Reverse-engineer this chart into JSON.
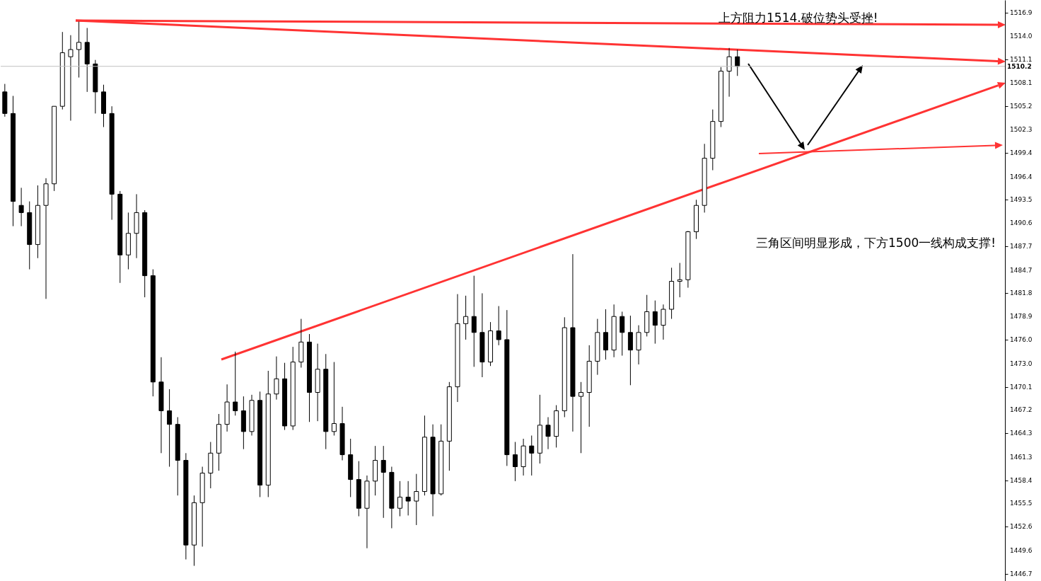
{
  "chart_data": {
    "type": "candlestick",
    "categories": [
      null,
      null,
      null,
      null,
      null,
      null,
      null,
      null,
      null,
      null,
      null,
      null,
      null,
      null,
      null,
      null,
      null,
      null,
      null,
      null,
      null,
      null,
      null,
      null,
      null,
      null,
      null,
      null,
      null,
      null,
      null,
      null,
      null,
      null,
      null,
      null,
      null,
      null,
      null,
      null,
      null,
      null,
      null,
      null,
      null,
      null,
      null,
      null,
      null,
      null,
      null,
      null,
      null,
      null,
      null,
      null,
      null,
      null,
      null,
      null,
      null,
      null,
      null,
      null,
      null,
      null,
      null,
      null,
      null,
      null,
      null,
      null,
      null,
      null,
      null,
      null,
      null,
      null,
      null,
      null,
      null,
      null,
      null,
      null,
      null,
      null,
      null,
      null,
      null,
      null,
      null,
      null,
      null,
      null,
      null,
      null,
      null,
      null,
      null,
      null,
      null,
      null,
      null,
      null,
      null,
      null,
      null,
      null,
      null,
      null,
      null,
      null,
      null,
      null,
      null,
      null,
      null,
      null,
      null,
      null,
      null,
      null
    ],
    "ylim": [
      1445.8,
      1518.5
    ],
    "yticks": [
      1516.9,
      {
        "value": 1514,
        "label": "1514.0"
      },
      1511.1,
      1508.1,
      1505.2,
      1502.3,
      1499.4,
      1496.4,
      1493.5,
      1490.6,
      1487.7,
      1484.7,
      1481.8,
      1478.9,
      {
        "value": 1476,
        "label": "1476.0"
      },
      {
        "value": 1473,
        "label": "1473.0"
      },
      1470.1,
      1467.2,
      1464.3,
      1461.3,
      1458.4,
      1455.5,
      1452.6,
      1449.6,
      1446.7
    ],
    "tick_labels": "y",
    "annotations": [
      "上方阻力1514.破位势头受挫!",
      "三角区间明显形成，下方1500一线构成支撑!"
    ],
    "ref_lines": [
      {
        "axis": "y",
        "value": 1510.2,
        "label": "1510.2",
        "color": "#c0c0c0"
      }
    ],
    "series": [
      {
        "color": "#000000",
        "ohlc": [
          [
            1507.0,
            1508.0,
            1503.9,
            1504.3
          ],
          [
            1504.3,
            1506.5,
            1490.2,
            1493.3
          ],
          [
            1492.8,
            1495.0,
            1490.2,
            1491.9
          ],
          [
            1491.9,
            1493.3,
            1484.8,
            1487.9
          ],
          [
            1487.9,
            1495.3,
            1486.2,
            1492.8
          ],
          [
            1492.8,
            1496.2,
            1481.1,
            1495.5
          ],
          [
            1495.5,
            1505.2,
            1494.6,
            1505.2
          ],
          [
            1505.2,
            1514.5,
            1504.8,
            1511.9
          ],
          [
            1511.4,
            1514.1,
            1503.4,
            1512.3
          ],
          [
            1512.3,
            1515.8,
            1508.8,
            1513.2
          ],
          [
            1513.2,
            1515.0,
            1507.0,
            1510.5
          ],
          [
            1510.5,
            1511.0,
            1504.3,
            1507.0
          ],
          [
            1507.0,
            1507.9,
            1502.6,
            1504.3
          ],
          [
            1504.3,
            1505.2,
            1491.0,
            1494.2
          ],
          [
            1494.2,
            1494.6,
            1483.1,
            1486.6
          ],
          [
            1486.6,
            1491.9,
            1484.8,
            1489.3
          ],
          [
            1489.3,
            1494.2,
            1486.2,
            1491.9
          ],
          [
            1491.9,
            1492.2,
            1481.3,
            1484.0
          ],
          [
            1484.0,
            1484.8,
            1468.9,
            1470.7
          ],
          [
            1470.7,
            1473.8,
            1461.8,
            1467.1
          ],
          [
            1467.1,
            1469.8,
            1460.1,
            1465.4
          ],
          [
            1465.4,
            1466.3,
            1456.5,
            1460.9
          ],
          [
            1460.9,
            1461.8,
            1448.5,
            1450.3
          ],
          [
            1450.3,
            1456.5,
            1447.7,
            1455.6
          ],
          [
            1455.6,
            1460.1,
            1450.1,
            1459.3
          ],
          [
            1459.3,
            1463.2,
            1457.4,
            1461.8
          ],
          [
            1461.8,
            1466.7,
            1459.6,
            1465.4
          ],
          [
            1465.4,
            1470.4,
            1464.5,
            1468.2
          ],
          [
            1468.2,
            1474.5,
            1466.5,
            1467.1
          ],
          [
            1467.1,
            1468.9,
            1462.3,
            1464.5
          ],
          [
            1464.5,
            1469.1,
            1464.0,
            1468.4
          ],
          [
            1468.4,
            1469.5,
            1456.3,
            1457.8
          ],
          [
            1457.8,
            1472.1,
            1456.3,
            1469.2
          ],
          [
            1469.2,
            1473.9,
            1468.5,
            1471.1
          ],
          [
            1471.1,
            1473.1,
            1464.7,
            1465.2
          ],
          [
            1465.2,
            1475.1,
            1464.7,
            1473.2
          ],
          [
            1473.2,
            1478.6,
            1472.5,
            1475.7
          ],
          [
            1475.7,
            1476.7,
            1465.7,
            1469.4
          ],
          [
            1469.4,
            1475.5,
            1465.8,
            1472.3
          ],
          [
            1472.3,
            1474.2,
            1462.3,
            1464.5
          ],
          [
            1464.5,
            1473.2,
            1464.0,
            1465.5
          ],
          [
            1465.5,
            1467.6,
            1460.9,
            1461.6
          ],
          [
            1461.6,
            1463.6,
            1456.3,
            1458.5
          ],
          [
            1458.5,
            1460.8,
            1453.9,
            1454.9
          ],
          [
            1454.9,
            1459.0,
            1449.9,
            1458.3
          ],
          [
            1458.3,
            1462.7,
            1456.5,
            1460.9
          ],
          [
            1460.9,
            1462.7,
            1453.7,
            1459.4
          ],
          [
            1459.4,
            1460.1,
            1452.4,
            1454.9
          ],
          [
            1454.9,
            1458.3,
            1453.9,
            1456.3
          ],
          [
            1456.3,
            1458.3,
            1454.0,
            1455.8
          ],
          [
            1455.8,
            1459.2,
            1452.8,
            1457.0
          ],
          [
            1457.0,
            1466.5,
            1456.5,
            1463.8
          ],
          [
            1463.8,
            1465.4,
            1453.9,
            1456.7
          ],
          [
            1456.7,
            1465.4,
            1456.5,
            1463.3
          ],
          [
            1463.3,
            1470.7,
            1459.6,
            1470.1
          ],
          [
            1470.1,
            1481.7,
            1468.2,
            1478.0
          ],
          [
            1478.0,
            1481.5,
            1476.0,
            1478.9
          ],
          [
            1478.9,
            1484.0,
            1472.6,
            1476.9
          ],
          [
            1476.9,
            1481.8,
            1471.3,
            1473.2
          ],
          [
            1473.2,
            1478.2,
            1472.7,
            1477.1
          ],
          [
            1477.1,
            1480.2,
            1475.3,
            1476.0
          ],
          [
            1476.0,
            1479.7,
            1460.2,
            1461.6
          ],
          [
            1461.6,
            1463.2,
            1458.3,
            1460.1
          ],
          [
            1460.1,
            1463.6,
            1459.0,
            1462.7
          ],
          [
            1462.7,
            1464.0,
            1459.0,
            1461.8
          ],
          [
            1461.8,
            1469.1,
            1460.5,
            1465.3
          ],
          [
            1465.3,
            1466.3,
            1462.3,
            1463.9
          ],
          [
            1463.9,
            1467.8,
            1462.5,
            1467.1
          ],
          [
            1467.1,
            1478.8,
            1466.3,
            1477.5
          ],
          [
            1477.5,
            1486.7,
            1464.5,
            1468.9
          ],
          [
            1468.9,
            1470.7,
            1461.8,
            1469.4
          ],
          [
            1469.4,
            1475.3,
            1465.1,
            1473.3
          ],
          [
            1473.3,
            1478.6,
            1471.6,
            1476.9
          ],
          [
            1476.9,
            1479.8,
            1473.5,
            1474.7
          ],
          [
            1474.7,
            1480.4,
            1473.8,
            1478.9
          ],
          [
            1478.9,
            1479.5,
            1474.0,
            1476.9
          ],
          [
            1476.9,
            1479.0,
            1470.3,
            1474.7
          ],
          [
            1474.7,
            1477.8,
            1472.9,
            1476.9
          ],
          [
            1476.9,
            1481.6,
            1476.4,
            1479.5
          ],
          [
            1479.5,
            1480.9,
            1475.5,
            1477.8
          ],
          [
            1477.8,
            1480.4,
            1476.0,
            1479.8
          ],
          [
            1479.8,
            1485.0,
            1478.6,
            1483.3
          ],
          [
            1483.3,
            1485.6,
            1481.3,
            1483.5
          ],
          [
            1483.5,
            1489.6,
            1482.5,
            1489.5
          ],
          [
            1489.5,
            1493.5,
            1488.6,
            1492.8
          ],
          [
            1492.8,
            1500.5,
            1491.9,
            1498.7
          ],
          [
            1498.7,
            1504.8,
            1497.2,
            1503.3
          ],
          [
            1503.3,
            1510.1,
            1502.6,
            1509.6
          ],
          [
            1509.6,
            1512.5,
            1506.4,
            1511.4
          ],
          [
            1511.4,
            1512.3,
            1509.0,
            1510.2
          ],
          null,
          null,
          null,
          null,
          null,
          null,
          null,
          null,
          null,
          null,
          null,
          null,
          null,
          null,
          null,
          null,
          null,
          null,
          null,
          null,
          null,
          null,
          null,
          null,
          null,
          null,
          null,
          null,
          null,
          null,
          null,
          null
        ]
      }
    ]
  }
}
